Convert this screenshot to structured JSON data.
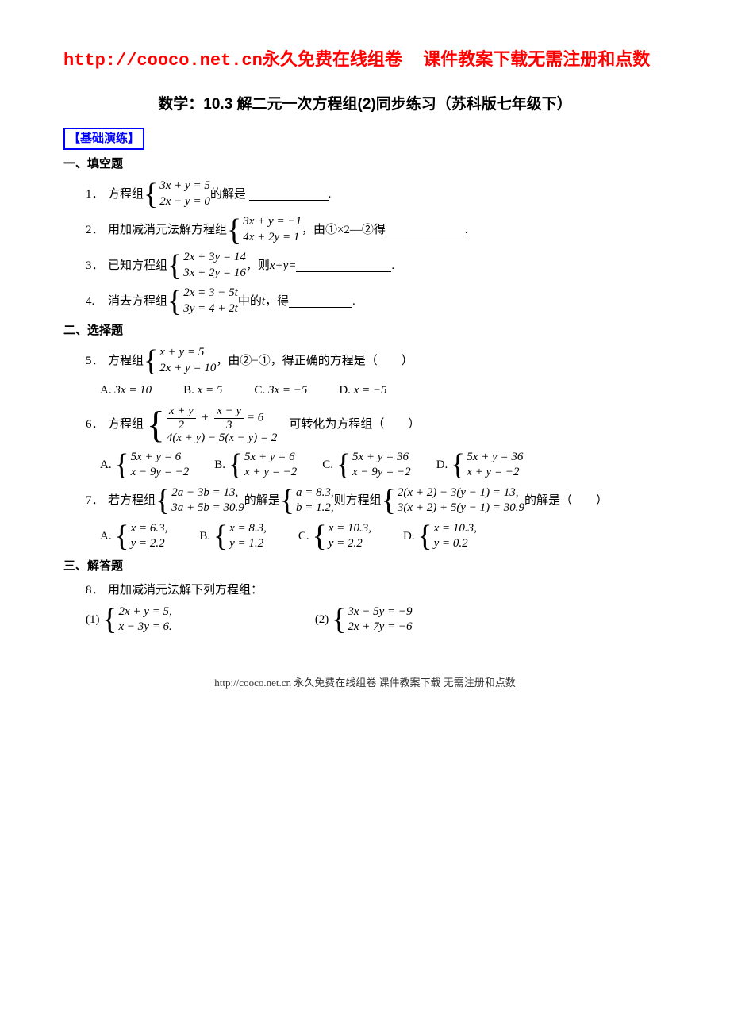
{
  "header": {
    "url": "http://cooco.net.cn",
    "line1_cn": "永久免费在线组卷",
    "line2_cn": "课件教案下载无需注册和点数"
  },
  "title": "数学：10.3 解二元一次方程组(2)同步练习（苏科版七年级下）",
  "section_label": "【基础演练】",
  "sub1": "一、填空题",
  "q1": {
    "num": "1．",
    "pre": "方程组",
    "eq1": "3x + y = 5",
    "eq2": "2x − y = 0",
    "post": "的解是"
  },
  "q2": {
    "num": "2．",
    "pre": "用加减消元法解方程组",
    "eq1": "3x + y = −1",
    "eq2": "4x + 2y = 1",
    "post": "，由①×2—②得"
  },
  "q3": {
    "num": "3．",
    "pre": "已知方程组",
    "eq1": "2x + 3y = 14",
    "eq2": "3x + 2y = 16",
    "mid": "，则 ",
    "expr": "x+y=",
    "post": "."
  },
  "q4": {
    "num": "4.",
    "pre": "消去方程组",
    "eq1": "2x = 3 − 5t",
    "eq2": "3y = 4 + 2t",
    "mid": "中的 ",
    "var": "t",
    "post": "，得"
  },
  "sub2": "二、选择题",
  "q5": {
    "num": "5．",
    "pre": "方程组",
    "eq1": "x + y = 5",
    "eq2": "2x + y = 10",
    "post": "，由②−①，得正确的方程是（　　）",
    "A": "3x = 10",
    "B": "x = 5",
    "C": "3x = −5",
    "D": "x = −5"
  },
  "q6": {
    "num": "6．",
    "pre": "方程组",
    "row1_f1_num": "x + y",
    "row1_f1_den": "2",
    "row1_f2_num": "x − y",
    "row1_f2_den": "3",
    "row1_rhs": " = 6",
    "row2": "4(x + y) − 5(x − y) = 2",
    "post": "　可转化为方程组（　　）",
    "A1": "5x + y = 6",
    "A2": "x − 9y = −2",
    "B1": "5x + y = 6",
    "B2": "x + y = −2",
    "C1": "5x + y = 36",
    "C2": "x − 9y = −2",
    "D1": "5x + y = 36",
    "D2": "x + y = −2"
  },
  "q7": {
    "num": "7．",
    "pre": "若方程组",
    "s1a": "2a − 3b = 13,",
    "s1b": "3a + 5b = 30.9",
    "mid1": "的解是",
    "s2a": "a = 8.3,",
    "s2b": "b = 1.2,",
    "mid2": "则方程组",
    "s3a": "2(x + 2) − 3(y − 1) = 13,",
    "s3b": "3(x + 2) + 5(y − 1) = 30.9",
    "post": "的解是（　　）",
    "A1": "x = 6.3,",
    "A2": "y = 2.2",
    "B1": "x = 8.3,",
    "B2": "y = 1.2",
    "C1": "x = 10.3,",
    "C2": "y = 2.2",
    "D1": "x = 10.3,",
    "D2": "y = 0.2"
  },
  "sub3": "三、解答题",
  "q8": {
    "num": "8．",
    "text": "用加减消元法解下列方程组：",
    "p1_lbl": "(1)",
    "p1a": "2x + y = 5,",
    "p1b": "x − 3y = 6.",
    "p2_lbl": "(2)",
    "p2a": "3x − 5y = −9",
    "p2b": "2x + 7y = −6"
  },
  "footer": "http://cooco.net.cn 永久免费在线组卷 课件教案下载 无需注册和点数"
}
